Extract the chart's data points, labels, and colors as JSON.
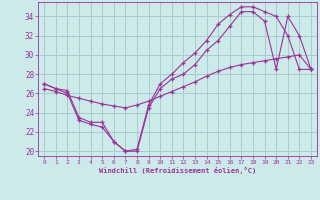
{
  "xlabel": "Windchill (Refroidissement éolien,°C)",
  "background_color": "#cceaea",
  "grid_color": "#aacccc",
  "line_color": "#993399",
  "xlim": [
    -0.5,
    23.5
  ],
  "ylim": [
    19.5,
    35.5
  ],
  "yticks": [
    20,
    22,
    24,
    26,
    28,
    30,
    32,
    34
  ],
  "xticks": [
    0,
    1,
    2,
    3,
    4,
    5,
    6,
    7,
    8,
    9,
    10,
    11,
    12,
    13,
    14,
    15,
    16,
    17,
    18,
    19,
    20,
    21,
    22,
    23
  ],
  "line1_x": [
    0,
    1,
    2,
    3,
    4,
    5,
    6,
    7,
    8,
    9,
    10,
    11,
    12,
    13,
    14,
    15,
    16,
    17,
    18,
    19,
    20,
    21,
    22,
    23
  ],
  "line1_y": [
    27.0,
    26.5,
    26.3,
    23.5,
    23.0,
    23.0,
    21.0,
    20.0,
    20.0,
    24.5,
    26.5,
    27.5,
    28.0,
    29.0,
    30.5,
    31.5,
    33.0,
    34.5,
    34.5,
    33.5,
    28.5,
    34.0,
    32.0,
    28.5
  ],
  "line2_x": [
    0,
    1,
    2,
    3,
    4,
    5,
    6,
    7,
    8,
    9,
    10,
    11,
    12,
    13,
    14,
    15,
    16,
    17,
    18,
    19,
    20,
    21,
    22,
    23
  ],
  "line2_y": [
    26.5,
    26.2,
    25.8,
    25.5,
    25.2,
    24.9,
    24.7,
    24.5,
    24.8,
    25.2,
    25.7,
    26.2,
    26.7,
    27.2,
    27.8,
    28.3,
    28.7,
    29.0,
    29.2,
    29.4,
    29.6,
    29.8,
    30.0,
    28.5
  ],
  "line3_x": [
    0,
    1,
    2,
    3,
    4,
    5,
    6,
    7,
    8,
    9,
    10,
    11,
    12,
    13,
    14,
    15,
    16,
    17,
    18,
    19,
    20,
    21,
    22,
    23
  ],
  "line3_y": [
    27.0,
    26.5,
    26.0,
    23.2,
    22.8,
    22.5,
    21.0,
    20.0,
    20.2,
    24.8,
    27.0,
    28.0,
    29.2,
    30.2,
    31.5,
    33.2,
    34.2,
    35.0,
    35.0,
    34.5,
    34.0,
    32.0,
    28.5,
    28.5
  ]
}
